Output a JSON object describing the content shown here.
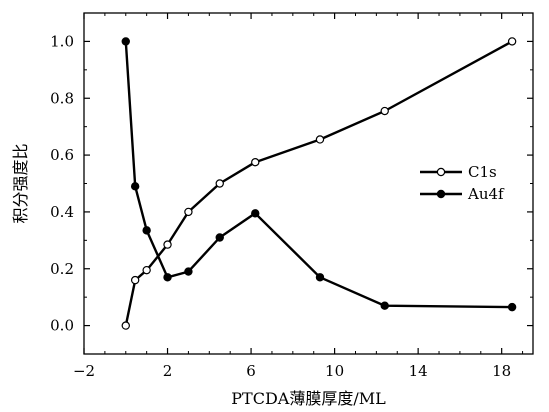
{
  "chart_data": {
    "type": "line",
    "title": "",
    "xlabel": "PTCDA薄膜厚度/ML",
    "ylabel": "积分强度比",
    "xlim": [
      -2,
      19.5
    ],
    "ylim": [
      -0.1,
      1.1
    ],
    "x_ticks": [
      -2,
      2,
      6,
      10,
      14,
      18
    ],
    "x_tick_labels": [
      "−2",
      "2",
      "6",
      "10",
      "14",
      "18"
    ],
    "y_ticks": [
      0.0,
      0.2,
      0.4,
      0.6,
      0.8,
      1.0
    ],
    "y_tick_labels": [
      "0.0",
      "0.2",
      "0.4",
      "0.6",
      "0.8",
      "1.0"
    ],
    "grid": false,
    "legend_position": "right-middle",
    "series": [
      {
        "name": "C1s",
        "marker": "open-circle",
        "color": "#000000",
        "x": [
          0,
          0.45,
          1.0,
          2.0,
          3.0,
          4.5,
          6.2,
          9.3,
          12.4,
          18.5
        ],
        "y": [
          0.0,
          0.16,
          0.195,
          0.285,
          0.4,
          0.5,
          0.575,
          0.655,
          0.755,
          1.0
        ]
      },
      {
        "name": "Au4f",
        "marker": "filled-circle",
        "color": "#000000",
        "x": [
          0,
          0.45,
          1.0,
          2.0,
          3.0,
          4.5,
          6.2,
          9.3,
          12.4,
          18.5
        ],
        "y": [
          1.0,
          0.49,
          0.335,
          0.17,
          0.19,
          0.31,
          0.395,
          0.17,
          0.07,
          0.065
        ]
      }
    ]
  }
}
